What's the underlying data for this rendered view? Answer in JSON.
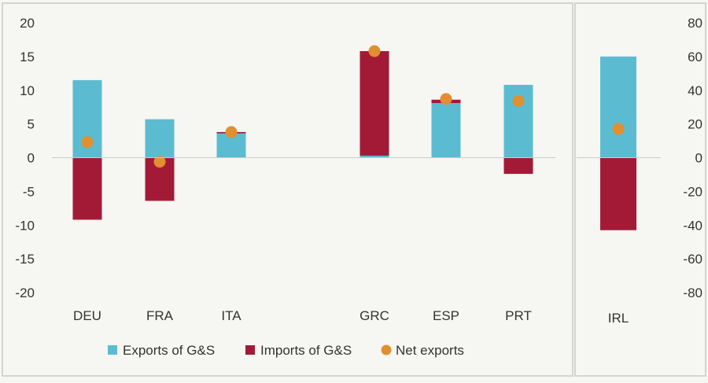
{
  "colors": {
    "exports": "#5bbcd1",
    "imports": "#a31a37",
    "net": "#e08f31",
    "background": "#f6f6f2",
    "border": "#d4d4d0"
  },
  "legend": {
    "exports_label": "Exports of G&S",
    "imports_label": "Imports of G&S",
    "net_label": "Net exports"
  },
  "chart_data": [
    {
      "type": "bar",
      "title": "",
      "xlabel": "",
      "ylabel": "",
      "stacked": true,
      "categories": [
        "DEU",
        "FRA",
        "ITA",
        "",
        "GRC",
        "ESP",
        "PRT"
      ],
      "ylim": [
        -20,
        20
      ],
      "yticks": [
        20,
        15,
        10,
        5,
        0,
        -5,
        -10,
        -15,
        -20
      ],
      "ytick_labels": [
        "20",
        "15",
        "10",
        "5",
        "0",
        "-5",
        "-10",
        "-15",
        "-20"
      ],
      "series": [
        {
          "name": "Exports of G&S",
          "kind": "bar",
          "values": [
            11.5,
            5.7,
            3.6,
            null,
            0.3,
            8.1,
            10.8
          ]
        },
        {
          "name": "Imports of G&S",
          "kind": "bar",
          "values": [
            -9.2,
            -6.4,
            0.2,
            null,
            15.5,
            0.5,
            -2.4
          ]
        },
        {
          "name": "Net exports",
          "kind": "marker",
          "values": [
            2.3,
            -0.6,
            3.8,
            null,
            15.8,
            8.7,
            8.4
          ]
        }
      ],
      "legend_position": "bottom"
    },
    {
      "type": "bar",
      "title": "",
      "stacked": true,
      "categories": [
        "IRL"
      ],
      "ylim": [
        -80,
        80
      ],
      "yticks": [
        80,
        60,
        40,
        20,
        0,
        -20,
        -40,
        -60,
        -80
      ],
      "ytick_labels": [
        "80",
        "60",
        "40",
        "20",
        "0",
        "-20",
        "-40",
        "-60",
        "-80"
      ],
      "axis_side": "right",
      "series": [
        {
          "name": "Exports of G&S",
          "kind": "bar",
          "values": [
            60
          ]
        },
        {
          "name": "Imports of G&S",
          "kind": "bar",
          "values": [
            -43
          ]
        },
        {
          "name": "Net exports",
          "kind": "marker",
          "values": [
            17
          ]
        }
      ]
    }
  ]
}
